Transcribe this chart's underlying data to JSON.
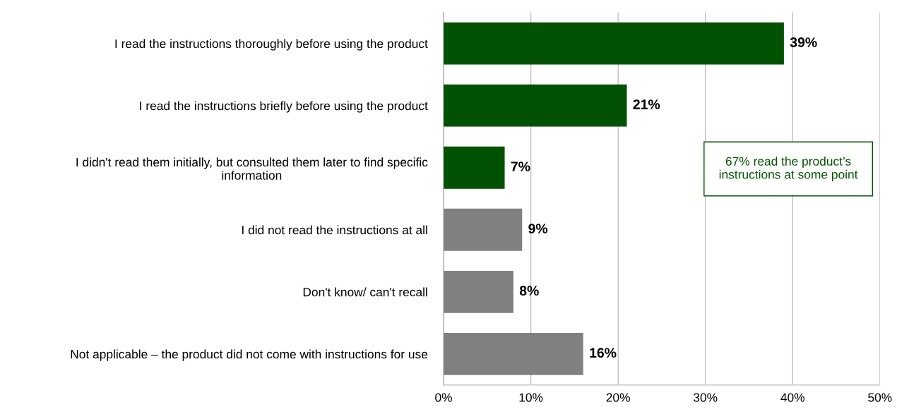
{
  "chart_data": {
    "type": "bar",
    "orientation": "horizontal",
    "categories": [
      "I read the instructions thoroughly before using the product",
      "I read the instructions briefly before using the product",
      "I didn't read them initially, but consulted them later to find specific\ninformation",
      "I did not read the instructions at all",
      "Don't know/ can't recall",
      "Not applicable – the product did not come with instructions for use"
    ],
    "values": [
      39,
      21,
      7,
      9,
      8,
      16
    ],
    "colors": [
      "#035203",
      "#035203",
      "#035203",
      "#808080",
      "#808080",
      "#808080"
    ],
    "value_labels": [
      "39%",
      "21%",
      "7%",
      "9%",
      "8%",
      "16%"
    ],
    "xlim": [
      0,
      50
    ],
    "xticks": [
      {
        "value": 0,
        "label": "0%"
      },
      {
        "value": 10,
        "label": "10%"
      },
      {
        "value": 20,
        "label": "20%"
      },
      {
        "value": 30,
        "label": "30%"
      },
      {
        "value": 40,
        "label": "40%"
      },
      {
        "value": 50,
        "label": "50%"
      }
    ],
    "grid": "x",
    "annotations": [
      "67% read the product’s\ninstructions at some point"
    ]
  }
}
